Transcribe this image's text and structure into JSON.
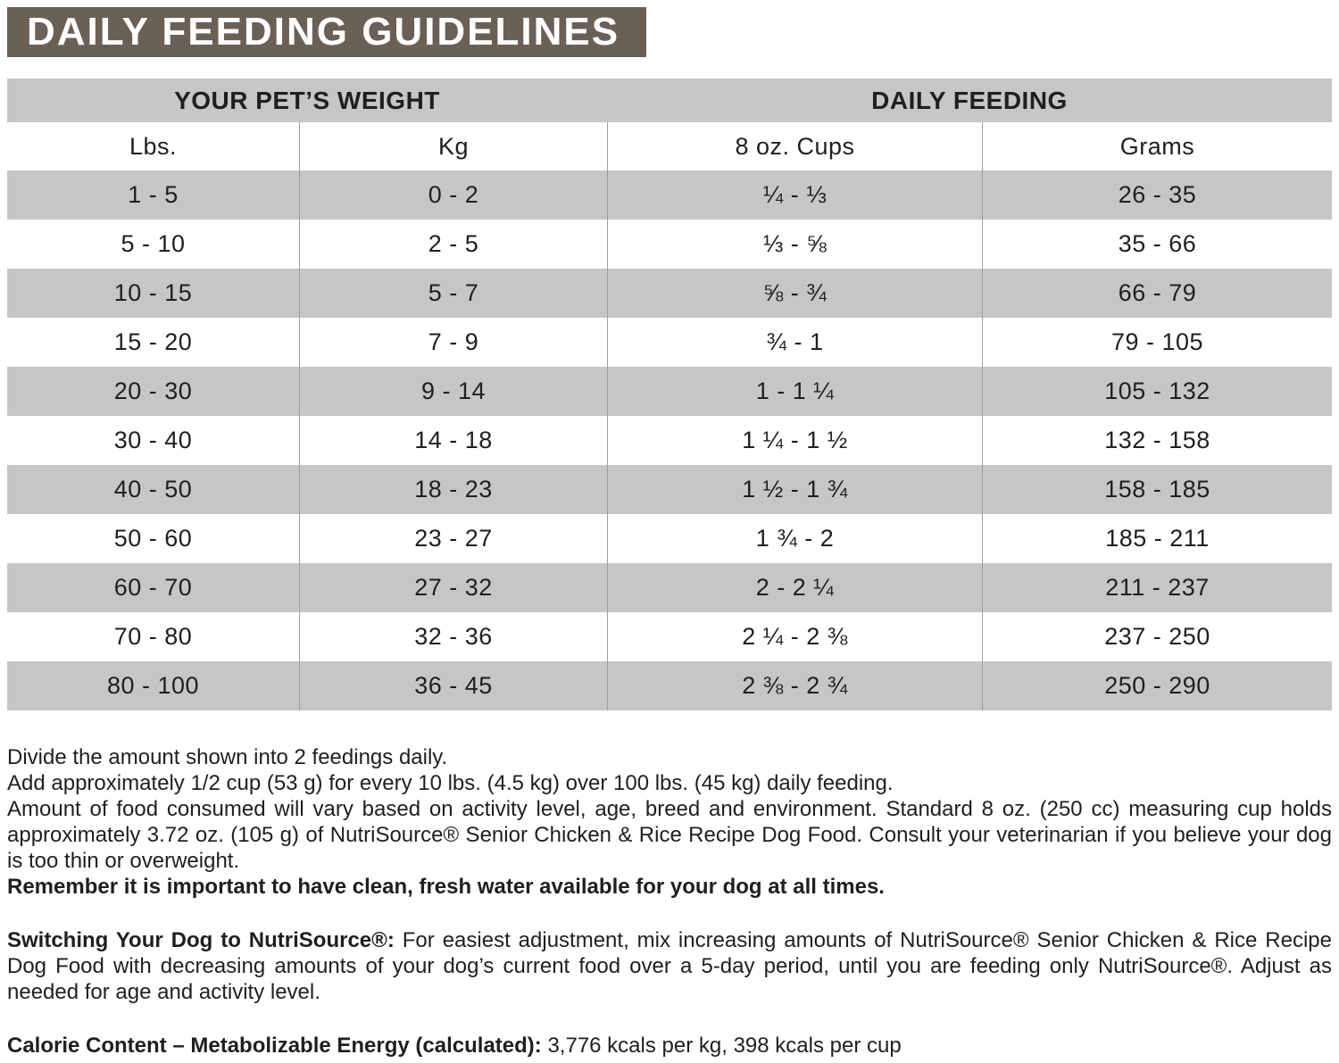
{
  "title": "DAILY FEEDING GUIDELINES",
  "table": {
    "group_headers": {
      "pet_weight": "YOUR PET’S WEIGHT",
      "daily_feeding": "DAILY FEEDING"
    },
    "columns": {
      "lbs": "Lbs.",
      "kg": "Kg",
      "cups": "8 oz. Cups",
      "grams": "Grams"
    },
    "rows": [
      {
        "lbs": "1 - 5",
        "kg": "0 - 2",
        "cups": "¼ - ⅓",
        "grams": "26 - 35"
      },
      {
        "lbs": "5 - 10",
        "kg": "2 - 5",
        "cups": "⅓ - ⅝",
        "grams": "35 - 66"
      },
      {
        "lbs": "10 - 15",
        "kg": "5 - 7",
        "cups": "⅝ - ¾",
        "grams": "66 - 79"
      },
      {
        "lbs": "15 - 20",
        "kg": "7 - 9",
        "cups": "¾ - 1",
        "grams": "79 - 105"
      },
      {
        "lbs": "20 - 30",
        "kg": "9 - 14",
        "cups": "1 - 1 ¼",
        "grams": "105 - 132"
      },
      {
        "lbs": "30 - 40",
        "kg": "14 - 18",
        "cups": "1 ¼ - 1 ½",
        "grams": "132 - 158"
      },
      {
        "lbs": "40 - 50",
        "kg": "18 - 23",
        "cups": "1 ½ - 1 ¾",
        "grams": "158 - 185"
      },
      {
        "lbs": "50 - 60",
        "kg": "23 - 27",
        "cups": "1 ¾ - 2",
        "grams": "185 - 211"
      },
      {
        "lbs": "60 - 70",
        "kg": "27 - 32",
        "cups": "2 - 2 ¼",
        "grams": "211 - 237"
      },
      {
        "lbs": "70 - 80",
        "kg": "32 - 36",
        "cups": "2 ¼ - 2 ⅜",
        "grams": "237 - 250"
      },
      {
        "lbs": "80 - 100",
        "kg": "36 - 45",
        "cups": "2 ⅜ - 2 ¾",
        "grams": "250 - 290"
      }
    ]
  },
  "notes": {
    "line1": "Divide the amount shown into 2 feedings daily.",
    "line2": "Add approximately 1/2 cup (53 g) for every 10 lbs. (4.5 kg) over 100 lbs. (45 kg) daily feeding.",
    "line3": "Amount of food consumed will vary based on activity level, age, breed and environment. Standard 8 oz. (250 cc) measuring cup holds approximately 3.72 oz. (105 g) of NutriSource® Senior Chicken & Rice Recipe Dog Food. Consult your veterinarian if you believe your dog is too thin or overweight.",
    "line4": "Remember it is important to have clean, fresh water available for your dog at all times.",
    "switching_label": "Switching Your Dog to NutriSource®:",
    "switching_text": " For easiest adjustment, mix increasing amounts of NutriSource® Senior Chicken & Rice Recipe Dog Food with decreasing amounts of your dog’s current food over a 5-day period, until you are feeding only NutriSource®. Adjust as needed for age and activity level.",
    "calorie_label": "Calorie Content – Metabolizable Energy (calculated):",
    "calorie_text": " 3,776 kcals per kg, 398 kcals per cup"
  },
  "colors": {
    "header_bar": "#6a6056",
    "row_gray": "#c6c6c6",
    "divider": "#9e9e9e",
    "text": "#1f1f1f",
    "title_text": "#ffffff"
  }
}
